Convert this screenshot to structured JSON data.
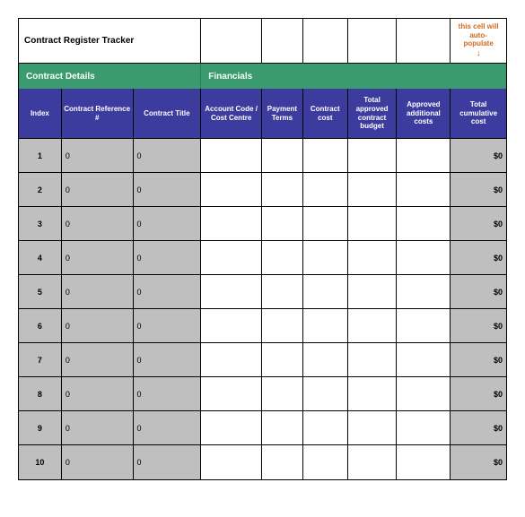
{
  "colors": {
    "section_bg": "#3a9b6e",
    "header_bg": "#3c3c9e",
    "grey_cell": "#bfbfbf",
    "note_color": "#d2691e"
  },
  "title": "Contract Register Tracker",
  "note_text": "this cell will auto-populate",
  "note_arrow": "↓",
  "sections": {
    "details": "Contract Details",
    "financials": "Financials"
  },
  "headers": {
    "index": "Index",
    "reference": "Contract Reference #",
    "title": "Contract Title",
    "account": "Account Code / Cost Centre",
    "payment": "Payment Terms",
    "cost": "Contract cost",
    "budget": "Total approved contract budget",
    "additional": "Approved additional costs",
    "cumulative": "Total cumulative cost"
  },
  "rows": [
    {
      "index": "1",
      "ref": "0",
      "title": "0",
      "account": "",
      "payment": "",
      "cost": "",
      "budget": "",
      "additional": "",
      "cumulative": "$0"
    },
    {
      "index": "2",
      "ref": "0",
      "title": "0",
      "account": "",
      "payment": "",
      "cost": "",
      "budget": "",
      "additional": "",
      "cumulative": "$0"
    },
    {
      "index": "3",
      "ref": "0",
      "title": "0",
      "account": "",
      "payment": "",
      "cost": "",
      "budget": "",
      "additional": "",
      "cumulative": "$0"
    },
    {
      "index": "4",
      "ref": "0",
      "title": "0",
      "account": "",
      "payment": "",
      "cost": "",
      "budget": "",
      "additional": "",
      "cumulative": "$0"
    },
    {
      "index": "5",
      "ref": "0",
      "title": "0",
      "account": "",
      "payment": "",
      "cost": "",
      "budget": "",
      "additional": "",
      "cumulative": "$0"
    },
    {
      "index": "6",
      "ref": "0",
      "title": "0",
      "account": "",
      "payment": "",
      "cost": "",
      "budget": "",
      "additional": "",
      "cumulative": "$0"
    },
    {
      "index": "7",
      "ref": "0",
      "title": "0",
      "account": "",
      "payment": "",
      "cost": "",
      "budget": "",
      "additional": "",
      "cumulative": "$0"
    },
    {
      "index": "8",
      "ref": "0",
      "title": "0",
      "account": "",
      "payment": "",
      "cost": "",
      "budget": "",
      "additional": "",
      "cumulative": "$0"
    },
    {
      "index": "9",
      "ref": "0",
      "title": "0",
      "account": "",
      "payment": "",
      "cost": "",
      "budget": "",
      "additional": "",
      "cumulative": "$0"
    },
    {
      "index": "10",
      "ref": "0",
      "title": "0",
      "account": "",
      "payment": "",
      "cost": "",
      "budget": "",
      "additional": "",
      "cumulative": "$0"
    }
  ]
}
